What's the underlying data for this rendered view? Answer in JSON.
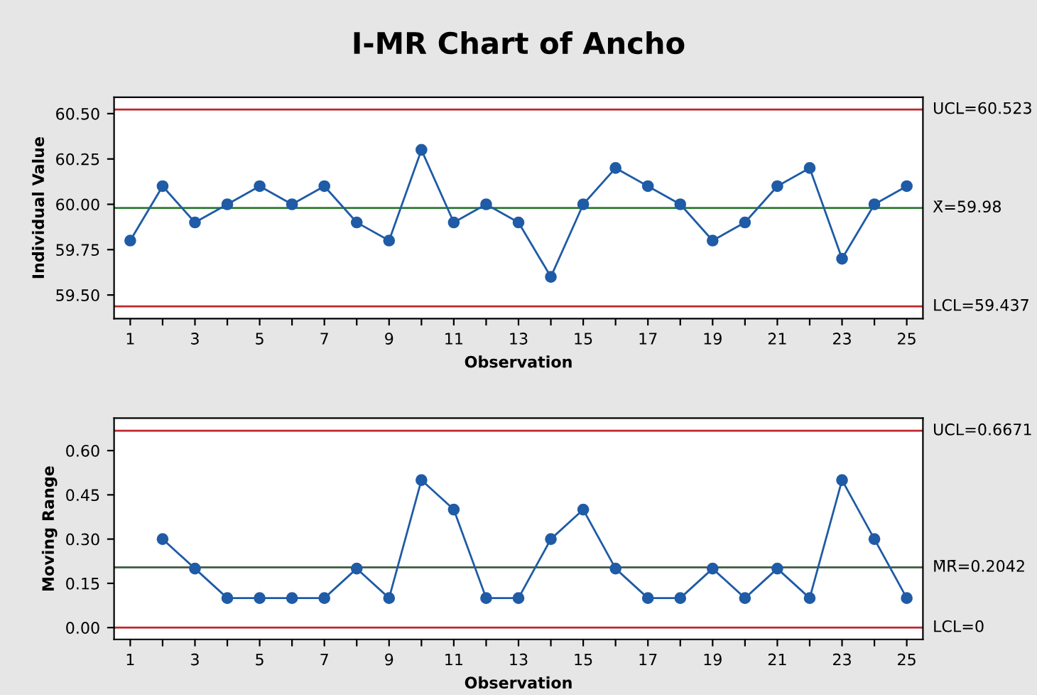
{
  "chart_data": [
    {
      "type": "line",
      "title": "I-MR Chart of Ancho",
      "xlabel": "Observation",
      "ylabel": "Individual Value",
      "x": [
        1,
        2,
        3,
        4,
        5,
        6,
        7,
        8,
        9,
        10,
        11,
        12,
        13,
        14,
        15,
        16,
        17,
        18,
        19,
        20,
        21,
        22,
        23,
        24,
        25
      ],
      "series": [
        {
          "color": "#1f5ba6",
          "values": [
            59.8,
            60.1,
            59.9,
            60.0,
            60.1,
            60.0,
            60.1,
            59.9,
            59.8,
            60.3,
            59.9,
            60.0,
            59.9,
            59.6,
            60.0,
            60.2,
            60.1,
            60.0,
            59.8,
            59.9,
            60.1,
            60.2,
            59.7,
            60.0,
            60.1
          ]
        }
      ],
      "marker": "circle",
      "line_style": "solid",
      "grid": false,
      "legend": false,
      "xlim": [
        0.5,
        25.5
      ],
      "xticks": [
        1,
        {
          "value": 2,
          "label": null
        },
        3,
        {
          "value": 4,
          "label": null
        },
        5,
        {
          "value": 6,
          "label": null
        },
        7,
        {
          "value": 8,
          "label": null
        },
        9,
        {
          "value": 10,
          "label": null
        },
        11,
        {
          "value": 12,
          "label": null
        },
        13,
        {
          "value": 14,
          "label": null
        },
        15,
        {
          "value": 16,
          "label": null
        },
        17,
        {
          "value": 18,
          "label": null
        },
        19,
        {
          "value": 20,
          "label": null
        },
        21,
        {
          "value": 22,
          "label": null
        },
        23,
        {
          "value": 24,
          "label": null
        },
        25
      ],
      "ylim": [
        59.37,
        60.59
      ],
      "yticks": [
        {
          "value": 59.5,
          "label": "59.50"
        },
        {
          "value": 59.75,
          "label": "59.75"
        },
        {
          "value": 60.0,
          "label": "60.00"
        },
        {
          "value": 60.25,
          "label": "60.25"
        },
        {
          "value": 60.5,
          "label": "60.50"
        }
      ],
      "ref_lines": [
        {
          "axis": "y",
          "value": 60.523,
          "label": "UCL=60.523",
          "color": "#c0272d"
        },
        {
          "axis": "y",
          "value": 59.98,
          "label": "X̄=59.98",
          "color": "#2e7d32"
        },
        {
          "axis": "y",
          "value": 59.437,
          "label": "LCL=59.437",
          "color": "#c0272d"
        }
      ]
    },
    {
      "type": "line",
      "xlabel": "Observation",
      "ylabel": "Moving Range",
      "series": [
        {
          "color": "#1f5ba6",
          "x": [
            2,
            3,
            4,
            5,
            6,
            7,
            8,
            9,
            10,
            11,
            12,
            13,
            14,
            15,
            16,
            17,
            18,
            19,
            20,
            21,
            22,
            23,
            24,
            25
          ],
          "values": [
            0.3,
            0.2,
            0.1,
            0.1,
            0.1,
            0.1,
            0.2,
            0.1,
            0.5,
            0.4,
            0.1,
            0.1,
            0.3,
            0.4,
            0.2,
            0.1,
            0.1,
            0.2,
            0.1,
            0.2,
            0.1,
            0.5,
            0.3,
            0.1
          ]
        }
      ],
      "marker": "circle",
      "line_style": "solid",
      "grid": false,
      "legend": false,
      "xlim": [
        0.5,
        25.5
      ],
      "xticks": [
        1,
        {
          "value": 2,
          "label": null
        },
        3,
        {
          "value": 4,
          "label": null
        },
        5,
        {
          "value": 6,
          "label": null
        },
        7,
        {
          "value": 8,
          "label": null
        },
        9,
        {
          "value": 10,
          "label": null
        },
        11,
        {
          "value": 12,
          "label": null
        },
        13,
        {
          "value": 14,
          "label": null
        },
        15,
        {
          "value": 16,
          "label": null
        },
        17,
        {
          "value": 18,
          "label": null
        },
        19,
        {
          "value": 20,
          "label": null
        },
        21,
        {
          "value": 22,
          "label": null
        },
        23,
        {
          "value": 24,
          "label": null
        },
        25
      ],
      "ylim": [
        -0.04,
        0.71
      ],
      "yticks": [
        {
          "value": 0.0,
          "label": "0.00"
        },
        {
          "value": 0.15,
          "label": "0.15"
        },
        {
          "value": 0.3,
          "label": "0.30"
        },
        {
          "value": 0.45,
          "label": "0.45"
        },
        {
          "value": 0.6,
          "label": "0.60"
        }
      ],
      "ref_lines": [
        {
          "axis": "y",
          "value": 0.6671,
          "label": "UCL=0.6671",
          "color": "#c0272d"
        },
        {
          "axis": "y",
          "value": 0.2042,
          "label": "M̄R̄=0.2042",
          "color": "#3d5a40"
        },
        {
          "axis": "y",
          "value": 0,
          "label": "LCL=0",
          "color": "#c0272d"
        }
      ]
    }
  ]
}
